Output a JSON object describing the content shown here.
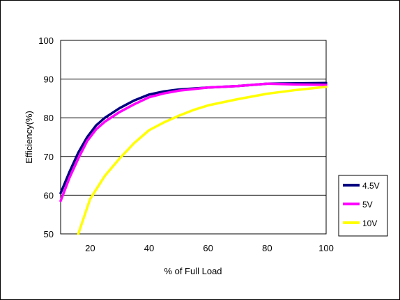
{
  "chart_data": {
    "type": "line",
    "xlabel": "% of Full Load",
    "ylabel": "Efficiency(%)",
    "xlim": [
      10,
      100
    ],
    "ylim": [
      50,
      100
    ],
    "xticks": [
      20,
      40,
      60,
      80,
      100
    ],
    "yticks": [
      50,
      60,
      70,
      80,
      90,
      100
    ],
    "grid": "horizontal",
    "legend_position": "right",
    "series": [
      {
        "name": "4.5V",
        "color": "#000080",
        "x": [
          10,
          13,
          16,
          19,
          22,
          25,
          30,
          35,
          40,
          45,
          50,
          60,
          70,
          80,
          90,
          100
        ],
        "y": [
          60.5,
          66,
          71,
          75,
          78,
          80,
          82.5,
          84.5,
          86,
          86.8,
          87.3,
          87.8,
          88.2,
          88.8,
          88.9,
          89
        ]
      },
      {
        "name": "5V",
        "color": "#ff00ff",
        "x": [
          10,
          13,
          16,
          19,
          22,
          25,
          30,
          35,
          40,
          45,
          50,
          60,
          70,
          80,
          90,
          100
        ],
        "y": [
          58.5,
          64.5,
          69.5,
          74,
          77,
          79,
          81.5,
          83.5,
          85.3,
          86.3,
          87,
          87.8,
          88.2,
          88.8,
          88.6,
          88.5
        ]
      },
      {
        "name": "10V",
        "color": "#ffff00",
        "x": [
          16,
          20,
          25,
          30,
          35,
          40,
          45,
          50,
          55,
          60,
          70,
          80,
          90,
          100
        ],
        "y": [
          50,
          59,
          65,
          69.5,
          73.5,
          76.8,
          78.8,
          80.5,
          82,
          83.2,
          84.8,
          86.2,
          87.2,
          88
        ]
      }
    ]
  }
}
